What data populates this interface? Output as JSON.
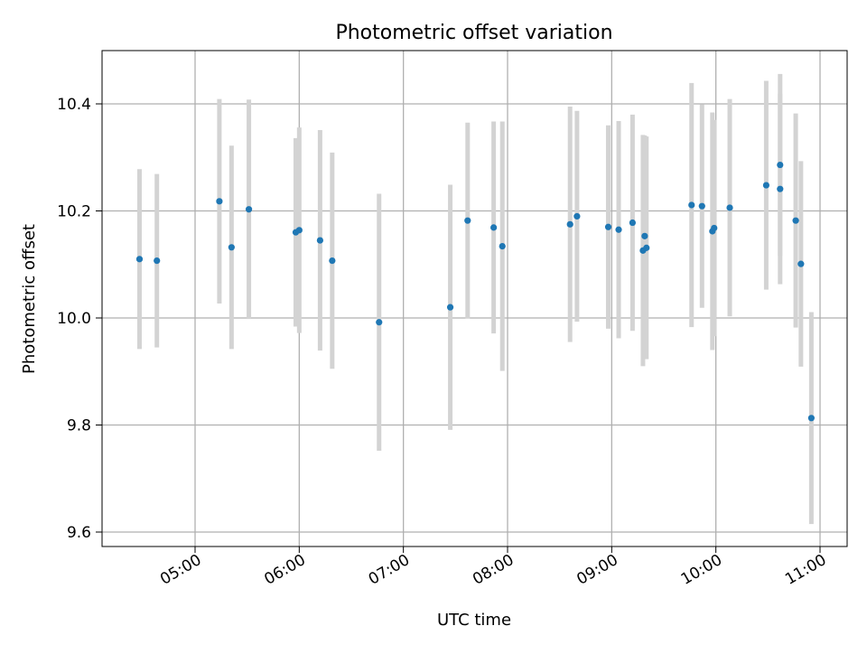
{
  "chart_data": {
    "type": "scatter",
    "title": "Photometric offset variation",
    "xlabel": "UTC time",
    "ylabel": "Photometric offset",
    "x_tick_labels": [
      "05:00",
      "06:00",
      "07:00",
      "08:00",
      "09:00",
      "10:00",
      "11:00"
    ],
    "y_tick_labels": [
      "9.6",
      "9.8",
      "10.0",
      "10.2",
      "10.4"
    ],
    "grid": true,
    "colors": {
      "point": "#1f77b4",
      "errorbar": "#d3d3d3",
      "grid": "#b0b0b0"
    },
    "points": [
      {
        "x": "04:28",
        "y": 10.11,
        "err": 0.168
      },
      {
        "x": "04:38",
        "y": 10.107,
        "err": 0.162
      },
      {
        "x": "05:14",
        "y": 10.218,
        "err": 0.191
      },
      {
        "x": "05:21",
        "y": 10.132,
        "err": 0.19
      },
      {
        "x": "05:31",
        "y": 10.203,
        "err": 0.205
      },
      {
        "x": "05:58",
        "y": 10.16,
        "err": 0.176
      },
      {
        "x": "06:00",
        "y": 10.164,
        "err": 0.192
      },
      {
        "x": "06:12",
        "y": 10.145,
        "err": 0.206
      },
      {
        "x": "06:19",
        "y": 10.107,
        "err": 0.202
      },
      {
        "x": "06:46",
        "y": 9.992,
        "err": 0.24
      },
      {
        "x": "07:27",
        "y": 10.02,
        "err": 0.229
      },
      {
        "x": "07:37",
        "y": 10.182,
        "err": 0.183
      },
      {
        "x": "07:52",
        "y": 10.169,
        "err": 0.198
      },
      {
        "x": "07:57",
        "y": 10.134,
        "err": 0.233
      },
      {
        "x": "08:36",
        "y": 10.175,
        "err": 0.22
      },
      {
        "x": "08:40",
        "y": 10.19,
        "err": 0.197
      },
      {
        "x": "08:58",
        "y": 10.17,
        "err": 0.19
      },
      {
        "x": "09:04",
        "y": 10.165,
        "err": 0.203
      },
      {
        "x": "09:12",
        "y": 10.178,
        "err": 0.202
      },
      {
        "x": "09:18",
        "y": 10.126,
        "err": 0.216
      },
      {
        "x": "09:19",
        "y": 10.153,
        "err": 0.188
      },
      {
        "x": "09:20",
        "y": 10.131,
        "err": 0.208
      },
      {
        "x": "09:46",
        "y": 10.211,
        "err": 0.228
      },
      {
        "x": "09:52",
        "y": 10.209,
        "err": 0.19
      },
      {
        "x": "09:58",
        "y": 10.162,
        "err": 0.222
      },
      {
        "x": "09:59",
        "y": 10.168,
        "err": 0.202
      },
      {
        "x": "10:08",
        "y": 10.206,
        "err": 0.203
      },
      {
        "x": "10:29",
        "y": 10.248,
        "err": 0.195
      },
      {
        "x": "10:37",
        "y": 10.286,
        "err": 0.17
      },
      {
        "x": "10:37",
        "y": 10.241,
        "err": 0.178
      },
      {
        "x": "10:46",
        "y": 10.182,
        "err": 0.2
      },
      {
        "x": "10:49",
        "y": 10.101,
        "err": 0.192
      },
      {
        "x": "10:55",
        "y": 9.813,
        "err": 0.198
      }
    ]
  }
}
